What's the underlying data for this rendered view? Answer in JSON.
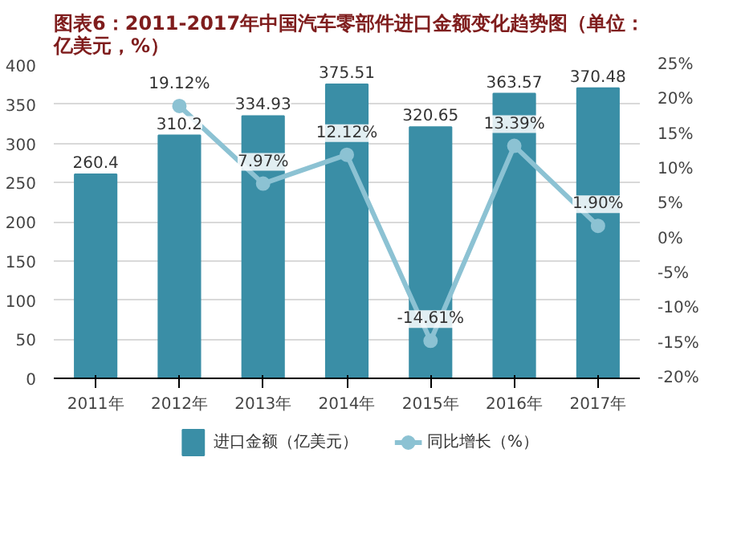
{
  "chart_data": {
    "type": "bar",
    "title": "图表6：2011-2017年中国汽车零部件进口金额变化趋势图（单位：亿美元，%）",
    "categories": [
      "2011年",
      "2012年",
      "2013年",
      "2014年",
      "2015年",
      "2016年",
      "2017年"
    ],
    "series": [
      {
        "name": "进口金额（亿美元）",
        "type": "bar",
        "color": "#3a8ea6",
        "values": [
          260.4,
          310.2,
          334.93,
          375.51,
          320.65,
          363.57,
          370.48
        ],
        "value_labels": [
          "260.4",
          "310.2",
          "334.93",
          "375.51",
          "320.65",
          "363.57",
          "370.48"
        ]
      },
      {
        "name": "同比增长（%）",
        "type": "line",
        "axis": "y2",
        "color": "#8cc2d3",
        "marker": "circle",
        "values": [
          null,
          19.12,
          7.97,
          12.12,
          -14.61,
          13.39,
          1.9
        ],
        "value_labels": [
          null,
          "19.12%",
          "7.97%",
          "12.12%",
          "-14.61%",
          "13.39%",
          "1.90%"
        ]
      }
    ],
    "ylim": [
      0,
      400
    ],
    "yticks": [
      0,
      50,
      100,
      150,
      200,
      250,
      300,
      350,
      400
    ],
    "y2lim": [
      -20,
      25
    ],
    "y2ticks": [
      {
        "value": -20,
        "label": "-20%"
      },
      {
        "value": -15,
        "label": "-15%"
      },
      {
        "value": -10,
        "label": "-10%"
      },
      {
        "value": -5,
        "label": "-5%"
      },
      {
        "value": 0,
        "label": "0%"
      },
      {
        "value": 5,
        "label": "5%"
      },
      {
        "value": 10,
        "label": "10%"
      },
      {
        "value": 15,
        "label": "15%"
      },
      {
        "value": 20,
        "label": "20%"
      },
      {
        "value": 25,
        "label": "25%"
      }
    ],
    "grid": "y",
    "legend": "bottom"
  }
}
